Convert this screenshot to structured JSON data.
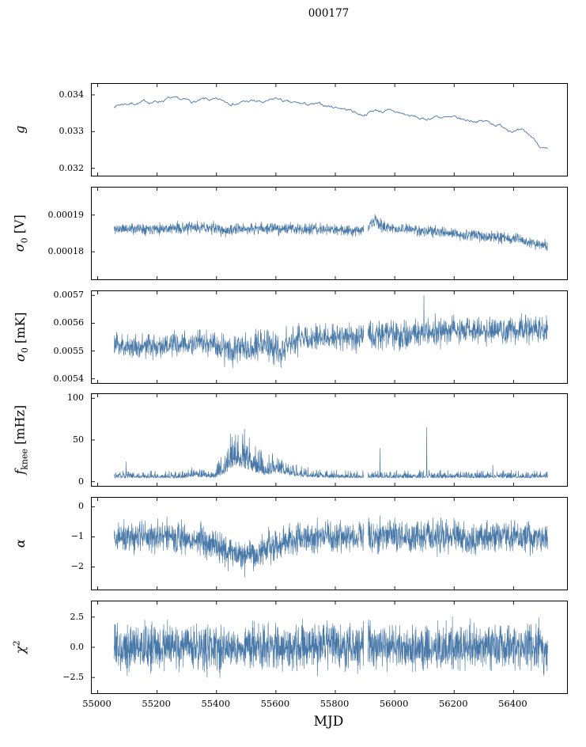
{
  "chart_data": {
    "type": "line",
    "title": "000177",
    "xlabel": "MJD",
    "line_color": "#4878a8",
    "xlim": [
      54980,
      56580
    ],
    "xticks": [
      55000,
      55200,
      55400,
      55600,
      55800,
      56000,
      56200,
      56400
    ],
    "xtick_labels": [
      "55000",
      "55200",
      "55400",
      "55600",
      "55800",
      "56000",
      "56200",
      "56400"
    ],
    "panels": [
      {
        "name": "g",
        "ylabel": {
          "pre": "g",
          "sub": "",
          "sup": "",
          "post": ""
        },
        "ylim": [
          0.0318,
          0.0343
        ],
        "yticks": [
          0.032,
          0.033,
          0.034
        ],
        "ytick_labels": [
          "0.032",
          "0.033",
          "0.034"
        ],
        "style": "correlated",
        "seed": 7,
        "n": 520,
        "lw": 0.9,
        "x_range": [
          55055,
          56515
        ],
        "mean_anchors": [
          [
            55055,
            0.0337
          ],
          [
            55090,
            0.03377
          ],
          [
            55150,
            0.0338
          ],
          [
            55200,
            0.03382
          ],
          [
            55240,
            0.03391
          ],
          [
            55265,
            0.03384
          ],
          [
            55320,
            0.0338
          ],
          [
            55365,
            0.03385
          ],
          [
            55420,
            0.03381
          ],
          [
            55470,
            0.03379
          ],
          [
            55520,
            0.03383
          ],
          [
            55565,
            0.03377
          ],
          [
            55605,
            0.03389
          ],
          [
            55645,
            0.03376
          ],
          [
            55700,
            0.03373
          ],
          [
            55760,
            0.0337
          ],
          [
            55820,
            0.03366
          ],
          [
            55860,
            0.03356
          ],
          [
            55890,
            0.03346
          ],
          [
            55930,
            0.03359
          ],
          [
            55970,
            0.03356
          ],
          [
            56010,
            0.03351
          ],
          [
            56060,
            0.03341
          ],
          [
            56100,
            0.03331
          ],
          [
            56140,
            0.03343
          ],
          [
            56180,
            0.03336
          ],
          [
            56230,
            0.0333
          ],
          [
            56270,
            0.03331
          ],
          [
            56310,
            0.03327
          ],
          [
            56350,
            0.03318
          ],
          [
            56390,
            0.03308
          ],
          [
            56430,
            0.03298
          ],
          [
            56460,
            0.03285
          ],
          [
            56490,
            0.03262
          ],
          [
            56515,
            0.03248
          ]
        ],
        "scale_anchors": [
          [
            55055,
            5e-05
          ],
          [
            56515,
            5e-05
          ]
        ]
      },
      {
        "name": "sigma0_V",
        "ylabel": {
          "pre": "σ",
          "sub": "0",
          "sup": "",
          "post": " [V]"
        },
        "ylim": [
          0.0001725,
          0.0001975
        ],
        "yticks": [
          0.00018,
          0.00019
        ],
        "ytick_labels": [
          "0.00018",
          "0.00019"
        ],
        "style": "noisy",
        "seed": 11,
        "n": 1700,
        "lw": 0.65,
        "x_range": [
          55055,
          56515
        ],
        "gaps": [
          [
            55896,
            55910
          ]
        ],
        "mean_anchors": [
          [
            55055,
            0.0001862
          ],
          [
            55150,
            0.0001864
          ],
          [
            55250,
            0.0001864
          ],
          [
            55350,
            0.0001866
          ],
          [
            55400,
            0.0001864
          ],
          [
            55430,
            0.0001856
          ],
          [
            55480,
            0.0001862
          ],
          [
            55560,
            0.0001864
          ],
          [
            55650,
            0.0001863
          ],
          [
            55750,
            0.0001861
          ],
          [
            55850,
            0.0001859
          ],
          [
            55905,
            0.000186
          ],
          [
            55930,
            0.0001884
          ],
          [
            55955,
            0.0001872
          ],
          [
            55990,
            0.0001863
          ],
          [
            56060,
            0.000186
          ],
          [
            56120,
            0.0001856
          ],
          [
            56180,
            0.000185
          ],
          [
            56240,
            0.0001846
          ],
          [
            56300,
            0.0001843
          ],
          [
            56360,
            0.0001838
          ],
          [
            56410,
            0.0001835
          ],
          [
            56435,
            0.0001827
          ],
          [
            56470,
            0.0001822
          ],
          [
            56515,
            0.0001816
          ]
        ],
        "scale_anchors": [
          [
            55055,
            1.5e-06
          ],
          [
            55900,
            1.5e-06
          ],
          [
            55935,
            1.9e-06
          ],
          [
            55980,
            1.5e-06
          ],
          [
            56515,
            1.5e-06
          ]
        ]
      },
      {
        "name": "sigma0_mK",
        "ylabel": {
          "pre": "σ",
          "sub": "0",
          "sup": "",
          "post": " [mK]"
        },
        "ylim": [
          0.005385,
          0.005715
        ],
        "yticks": [
          0.0054,
          0.0055,
          0.0056,
          0.0057
        ],
        "ytick_labels": [
          "0.0054",
          "0.0055",
          "0.0056",
          "0.0057"
        ],
        "style": "noisy",
        "seed": 23,
        "n": 1700,
        "lw": 0.65,
        "x_range": [
          55055,
          56515
        ],
        "gaps": [
          [
            55896,
            55910
          ]
        ],
        "mean_anchors": [
          [
            55055,
            0.005522
          ],
          [
            55120,
            0.005516
          ],
          [
            55200,
            0.005518
          ],
          [
            55280,
            0.005522
          ],
          [
            55350,
            0.005528
          ],
          [
            55400,
            0.00552
          ],
          [
            55440,
            0.005512
          ],
          [
            55500,
            0.005515
          ],
          [
            55545,
            0.005528
          ],
          [
            55585,
            0.005518
          ],
          [
            55615,
            0.005497
          ],
          [
            55640,
            0.00553
          ],
          [
            55690,
            0.005548
          ],
          [
            55740,
            0.005545
          ],
          [
            55790,
            0.005552
          ],
          [
            55840,
            0.005548
          ],
          [
            55890,
            0.005552
          ],
          [
            55920,
            0.005558
          ],
          [
            55960,
            0.005565
          ],
          [
            56000,
            0.005558
          ],
          [
            56040,
            0.005552
          ],
          [
            56090,
            0.005562
          ],
          [
            56140,
            0.005568
          ],
          [
            56200,
            0.005572
          ],
          [
            56260,
            0.00557
          ],
          [
            56320,
            0.005574
          ],
          [
            56380,
            0.005573
          ],
          [
            56440,
            0.005576
          ],
          [
            56515,
            0.005578
          ]
        ],
        "scale_anchors": [
          [
            55055,
            4.2e-05
          ],
          [
            55380,
            4.4e-05
          ],
          [
            55430,
            5.6e-05
          ],
          [
            55560,
            5.4e-05
          ],
          [
            55620,
            6e-05
          ],
          [
            55680,
            4.4e-05
          ],
          [
            55900,
            4.4e-05
          ],
          [
            55950,
            5.2e-05
          ],
          [
            56050,
            4.8e-05
          ],
          [
            56515,
            4.8e-05
          ]
        ],
        "spikes": [
          [
            56098,
            0.0057
          ],
          [
            55617,
            0.00544
          ],
          [
            55455,
            0.00544
          ]
        ]
      },
      {
        "name": "f_knee",
        "ylabel": {
          "pre": "f",
          "sub": "knee",
          "sup": "",
          "post": " [mHz]"
        },
        "ylim": [
          -5,
          105
        ],
        "yticks": [
          0,
          50,
          100
        ],
        "ytick_labels": [
          "0",
          "50",
          "100"
        ],
        "style": "spiky",
        "seed": 31,
        "n": 1700,
        "lw": 0.65,
        "x_range": [
          55055,
          56515
        ],
        "gaps": [
          [
            55896,
            55910
          ]
        ],
        "mean_anchors": [
          [
            55055,
            8
          ],
          [
            55290,
            8
          ],
          [
            55320,
            11
          ],
          [
            55360,
            9
          ],
          [
            55400,
            9
          ],
          [
            55425,
            16
          ],
          [
            55450,
            30
          ],
          [
            55468,
            34
          ],
          [
            55490,
            30
          ],
          [
            55515,
            24
          ],
          [
            55540,
            18
          ],
          [
            55565,
            14
          ],
          [
            55585,
            17
          ],
          [
            55605,
            20
          ],
          [
            55625,
            17
          ],
          [
            55655,
            12
          ],
          [
            55690,
            10
          ],
          [
            55730,
            9
          ],
          [
            55800,
            8
          ],
          [
            56000,
            8
          ],
          [
            56515,
            8
          ]
        ],
        "scale_anchors": [
          [
            55055,
            5
          ],
          [
            55290,
            5
          ],
          [
            55325,
            9
          ],
          [
            55395,
            6
          ],
          [
            55430,
            22
          ],
          [
            55465,
            30
          ],
          [
            55500,
            26
          ],
          [
            55540,
            16
          ],
          [
            55580,
            13
          ],
          [
            55620,
            12
          ],
          [
            55660,
            8
          ],
          [
            55720,
            6
          ],
          [
            55800,
            5
          ],
          [
            56515,
            5
          ]
        ],
        "spikes": [
          [
            55095,
            24
          ],
          [
            55950,
            40
          ],
          [
            56108,
            65
          ],
          [
            56330,
            20
          ]
        ]
      },
      {
        "name": "alpha",
        "ylabel": {
          "pre": "α",
          "sub": "",
          "sup": "",
          "post": ""
        },
        "ylim": [
          -2.75,
          0.3
        ],
        "yticks": [
          0,
          -1,
          -2
        ],
        "ytick_labels": [
          "0",
          "−1",
          "−2"
        ],
        "style": "noisy",
        "seed": 41,
        "n": 2000,
        "lw": 0.65,
        "x_range": [
          55055,
          56515
        ],
        "gaps": [
          [
            55896,
            55910
          ]
        ],
        "mean_anchors": [
          [
            55055,
            -1.02
          ],
          [
            55250,
            -1.0
          ],
          [
            55310,
            -1.15
          ],
          [
            55345,
            -1.05
          ],
          [
            55395,
            -1.3
          ],
          [
            55440,
            -1.5
          ],
          [
            55490,
            -1.6
          ],
          [
            55535,
            -1.55
          ],
          [
            55570,
            -1.35
          ],
          [
            55605,
            -1.25
          ],
          [
            55640,
            -1.1
          ],
          [
            55690,
            -1.02
          ],
          [
            55800,
            -1.0
          ],
          [
            56515,
            -1.0
          ]
        ],
        "scale_anchors": [
          [
            55055,
            0.5
          ],
          [
            55390,
            0.52
          ],
          [
            55450,
            0.56
          ],
          [
            55560,
            0.54
          ],
          [
            55620,
            0.5
          ],
          [
            55700,
            0.48
          ],
          [
            56000,
            0.5
          ],
          [
            56515,
            0.5
          ]
        ]
      },
      {
        "name": "chi2",
        "ylabel": {
          "pre": "χ",
          "sub": "",
          "sup": "2",
          "post": ""
        },
        "ylim": [
          -3.8,
          3.8
        ],
        "yticks": [
          -2.5,
          0.0,
          2.5
        ],
        "ytick_labels": [
          "−2.5",
          "0.0",
          "2.5"
        ],
        "style": "noisy",
        "seed": 53,
        "n": 2200,
        "lw": 0.65,
        "x_range": [
          55055,
          56515
        ],
        "gaps": [
          [
            55896,
            55910
          ]
        ],
        "mean_anchors": [
          [
            55055,
            0
          ],
          [
            56515,
            0
          ]
        ],
        "scale_anchors": [
          [
            55055,
            1.8
          ],
          [
            56515,
            1.8
          ]
        ]
      }
    ]
  }
}
